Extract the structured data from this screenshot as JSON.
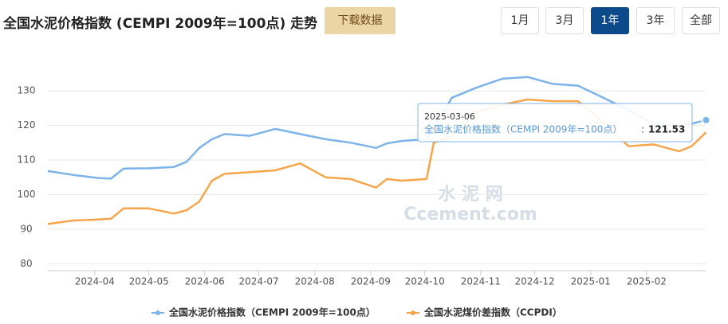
{
  "chart_data": {
    "type": "line",
    "title": "全国水泥价格指数 (CEMPI 2009年=100点) 走势",
    "x": [
      "2024-03-06",
      "2024-03-20",
      "2024-04-03",
      "2024-04-10",
      "2024-04-17",
      "2024-05-01",
      "2024-05-15",
      "2024-05-22",
      "2024-05-29",
      "2024-06-05",
      "2024-06-12",
      "2024-06-26",
      "2024-07-10",
      "2024-07-24",
      "2024-08-07",
      "2024-08-21",
      "2024-09-04",
      "2024-09-10",
      "2024-09-18",
      "2024-10-02",
      "2024-10-06",
      "2024-10-16",
      "2024-10-30",
      "2024-11-13",
      "2024-11-27",
      "2024-12-11",
      "2024-12-25",
      "2025-01-08",
      "2025-01-22",
      "2025-02-05",
      "2025-02-19",
      "2025-02-26",
      "2025-03-06"
    ],
    "series": [
      {
        "name": "全国水泥价格指数（CEMPI 2009年=100点）",
        "color": "#7cb3e8",
        "values": [
          106.8,
          105.7,
          104.8,
          104.6,
          107.5,
          107.6,
          108.0,
          109.5,
          113.5,
          116.0,
          117.5,
          117.0,
          119.0,
          117.5,
          116.0,
          115.0,
          113.5,
          114.8,
          115.5,
          116.0,
          119.0,
          128.0,
          131.0,
          133.5,
          134.0,
          132.0,
          131.5,
          128.0,
          124.5,
          120.5,
          119.8,
          120.5,
          121.53
        ]
      },
      {
        "name": "全国水泥煤价差指数（CCPDI）",
        "color": "#f7a54a",
        "values": [
          91.5,
          92.5,
          92.8,
          93.0,
          96.0,
          96.0,
          94.5,
          95.5,
          98.0,
          104.0,
          106.0,
          106.5,
          107.0,
          109.0,
          105.0,
          104.5,
          102.0,
          104.5,
          104.0,
          104.5,
          115.0,
          117.0,
          124.0,
          126.0,
          127.5,
          127.0,
          127.0,
          121.0,
          114.0,
          114.5,
          112.5,
          114.0,
          118.0
        ]
      }
    ],
    "xlim": [
      "2024-03-06",
      "2025-03-08"
    ],
    "xticks": [
      "2024-04",
      "2024-05",
      "2024-06",
      "2024-07",
      "2024-08",
      "2024-09",
      "2024-10",
      "2024-11",
      "2024-12",
      "2025-01",
      "2025-02"
    ],
    "ylim": [
      78,
      139
    ],
    "yticks": [
      80,
      90,
      100,
      110,
      120,
      130
    ],
    "grid": true,
    "legend": "bottom",
    "watermark": [
      "水 泥 网",
      "Ccement.com"
    ],
    "tooltip": {
      "date": "2025-03-06",
      "series": "全国水泥价格指数（CEMPI 2009年=100点）",
      "value": 121.53,
      "value_labels": "121.53"
    }
  },
  "controls": {
    "download": "下载数据",
    "ranges": [
      "1月",
      "3月",
      "1年",
      "3年",
      "全部"
    ],
    "active_range": "1年"
  }
}
